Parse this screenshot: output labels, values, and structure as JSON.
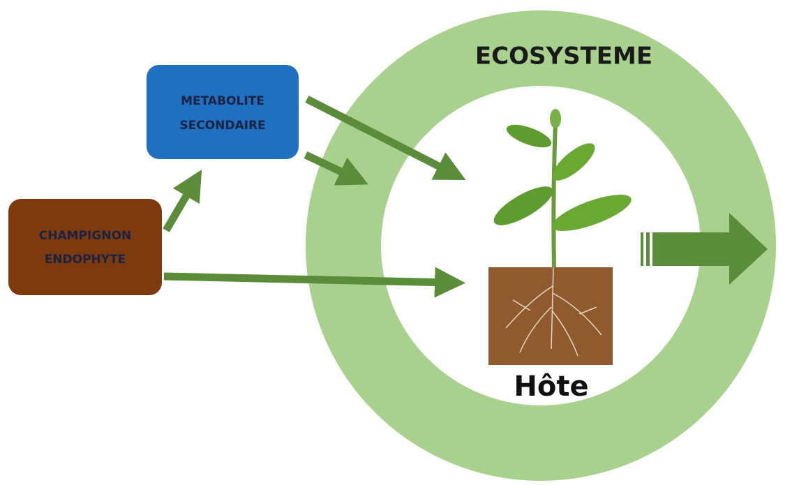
{
  "ecosystem": {
    "label": "ECOSYSTEME"
  },
  "nodes": [
    {
      "lines": [
        "METABOLITE",
        "SECONDAIRE"
      ]
    },
    {
      "lines": [
        "CHAMPIGNON",
        "ENDOPHYTE"
      ]
    }
  ],
  "host": {
    "label": "Hôte"
  }
}
